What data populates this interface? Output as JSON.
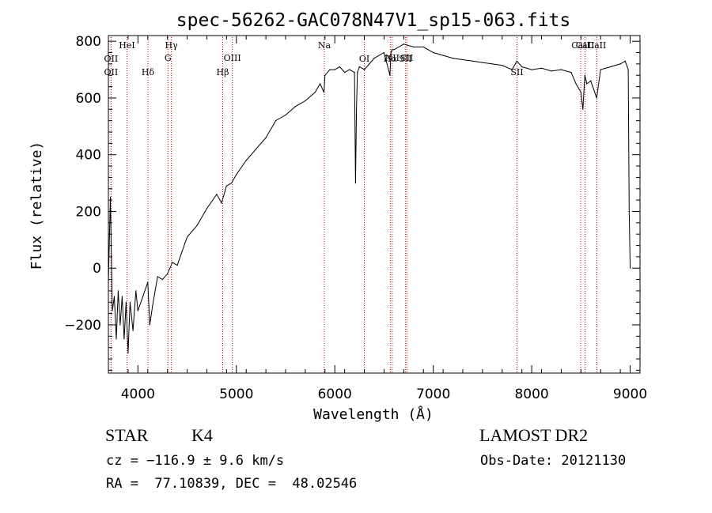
{
  "chart_data": {
    "type": "line",
    "title": "spec-56262-GAC078N47V1_sp15-063.fits",
    "xlabel": "Wavelength (Å)",
    "ylabel": "Flux (relative)",
    "xlim": [
      3700,
      9100
    ],
    "ylim": [
      -370,
      820
    ],
    "x_ticks": [
      4000,
      5000,
      6000,
      7000,
      8000,
      9000
    ],
    "y_ticks": [
      -200,
      0,
      200,
      400,
      600,
      800
    ],
    "grid": false,
    "line_color": "#000000",
    "marker_line_color": "#cc0000",
    "series": [
      {
        "x": [
          3700,
          3720,
          3740,
          3760,
          3780,
          3800,
          3820,
          3840,
          3860,
          3880,
          3900,
          3920,
          3950,
          3980,
          4000,
          4050,
          4100,
          4120,
          4150,
          4200,
          4250,
          4300,
          4350,
          4400,
          4450,
          4500,
          4600,
          4700,
          4800,
          4850,
          4900,
          4950,
          5000,
          5100,
          5200,
          5300,
          5400,
          5500,
          5600,
          5700,
          5800,
          5850,
          5890,
          5900,
          5950,
          6000,
          6050,
          6100,
          6150,
          6200,
          6210,
          6220,
          6230,
          6250,
          6300,
          6350,
          6400,
          6500,
          6560,
          6570,
          6580,
          6600,
          6700,
          6800,
          6900,
          7000,
          7100,
          7200,
          7300,
          7400,
          7500,
          7600,
          7700,
          7800,
          7850,
          7900,
          8000,
          8100,
          8200,
          8300,
          8400,
          8450,
          8500,
          8520,
          8540,
          8560,
          8600,
          8660,
          8700,
          8800,
          8900,
          8950,
          8980,
          8990,
          9000
        ],
        "y": [
          -50,
          250,
          -150,
          -100,
          -250,
          -80,
          -200,
          -100,
          -250,
          -120,
          -300,
          -120,
          -220,
          -80,
          -150,
          -100,
          -50,
          -200,
          -130,
          -30,
          -40,
          -20,
          20,
          10,
          60,
          110,
          150,
          210,
          260,
          230,
          290,
          300,
          330,
          380,
          420,
          460,
          520,
          540,
          570,
          590,
          620,
          650,
          620,
          680,
          700,
          700,
          710,
          690,
          700,
          690,
          300,
          560,
          690,
          710,
          700,
          720,
          740,
          760,
          680,
          760,
          770,
          770,
          790,
          780,
          780,
          760,
          750,
          740,
          735,
          730,
          725,
          720,
          715,
          700,
          730,
          710,
          700,
          705,
          695,
          700,
          690,
          650,
          620,
          560,
          680,
          650,
          660,
          600,
          700,
          710,
          720,
          730,
          700,
          200,
          0
        ]
      }
    ],
    "line_markers": [
      {
        "label": "OII",
        "x": 3727,
        "row": 3
      },
      {
        "label": "OII",
        "x": 3727,
        "row": 4
      },
      {
        "label": "HeI",
        "x": 3889,
        "row": 1
      },
      {
        "label": "Hδ",
        "x": 4102,
        "row": 4
      },
      {
        "label": "Hγ",
        "x": 4340,
        "row": 1
      },
      {
        "label": "G",
        "x": 4305,
        "row": 2
      },
      {
        "label": "OIII",
        "x": 4959,
        "row": 2
      },
      {
        "label": "Hβ",
        "x": 4861,
        "row": 4
      },
      {
        "label": "Na",
        "x": 5893,
        "row": 1
      },
      {
        "label": "OI",
        "x": 6300,
        "row": 3
      },
      {
        "label": "Hα",
        "x": 6563,
        "row": 3
      },
      {
        "label": "NII",
        "x": 6583,
        "row": 2
      },
      {
        "label": "SII",
        "x": 6716,
        "row": 3
      },
      {
        "label": "SII",
        "x": 6731,
        "row": 2
      },
      {
        "label": "SII",
        "x": 7850,
        "row": 4
      },
      {
        "label": "CaII",
        "x": 8498,
        "row": 1
      },
      {
        "label": "CaII",
        "x": 8542,
        "row": 1
      },
      {
        "label": "CaII",
        "x": 8662,
        "row": 1
      }
    ]
  },
  "info": {
    "object_class": "STAR",
    "subclass": "K4",
    "survey": "LAMOST DR2",
    "cz": "cz = −116.9 ± 9.6 km/s",
    "obs_date": "Obs-Date: 20121130",
    "coords": "RA =  77.10839, DEC =  48.02546"
  }
}
